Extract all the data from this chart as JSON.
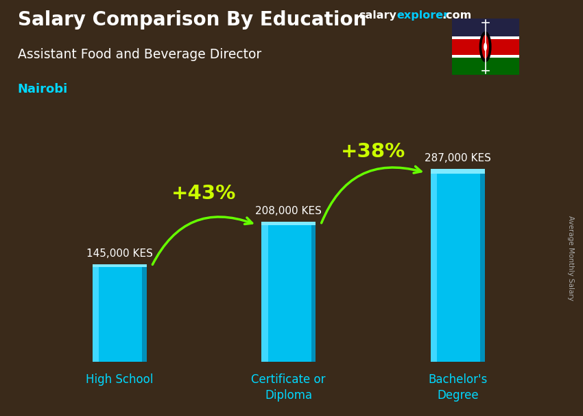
{
  "title": "Salary Comparison By Education",
  "subtitle": "Assistant Food and Beverage Director",
  "city": "Nairobi",
  "categories": [
    "High School",
    "Certificate or\nDiploma",
    "Bachelor's\nDegree"
  ],
  "values": [
    145000,
    208000,
    287000
  ],
  "value_labels": [
    "145,000 KES",
    "208,000 KES",
    "287,000 KES"
  ],
  "pct_labels": [
    "+43%",
    "+38%"
  ],
  "bar_color_face": "#00c0f0",
  "bar_color_light": "#40d8ff",
  "bar_color_dark": "#0090bb",
  "bar_color_top": "#80eaff",
  "bg_color": "#3a2a1a",
  "title_color": "#ffffff",
  "subtitle_color": "#ffffff",
  "city_color": "#00d8ff",
  "label_color": "#ffffff",
  "cat_color": "#00d8ff",
  "pct_color": "#ccff00",
  "arrow_color": "#66ff00",
  "site_white": "#ffffff",
  "site_cyan": "#00ccff",
  "side_label": "Average Monthly Salary",
  "bar_width": 0.32,
  "ylim": [
    0,
    340000
  ],
  "flag_black": "#1a1a2e",
  "flag_red": "#cc0000",
  "flag_green": "#006600",
  "flag_white": "#ffffff"
}
